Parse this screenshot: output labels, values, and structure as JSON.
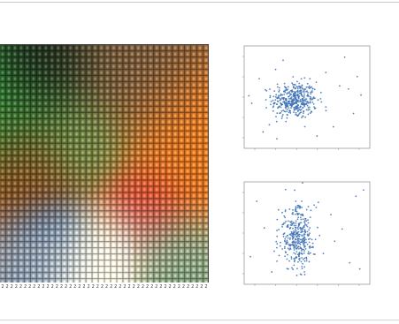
{
  "chart_data": [
    {
      "type": "heatmap",
      "title": "",
      "xlabel": "",
      "ylabel": "",
      "x_tick_labels": [
        "2",
        "2",
        "2",
        "2",
        "2",
        "2",
        "2",
        "2",
        "2",
        "2",
        "2",
        "2",
        "2",
        "2",
        "2",
        "2",
        "2",
        "2",
        "2",
        "2",
        "2",
        "2",
        "2",
        "2",
        "2",
        "2",
        "2",
        "2",
        "2",
        "2",
        "2",
        "2",
        "2",
        "2",
        "2",
        "2",
        "2",
        "2",
        "2",
        "2",
        "2",
        "2",
        "2",
        "2",
        "2",
        "2"
      ],
      "grid": false,
      "colors": [
        "#2e7d32",
        "#1a1a1a",
        "#8b4513",
        "#e67e22",
        "#f39c12",
        "#c0392b",
        "#2b7bb9",
        "#f2e6a0",
        "#ffffff",
        "#4caf50"
      ]
    },
    {
      "type": "scatter",
      "title": "",
      "xlabel": "",
      "ylabel": "",
      "color": "#3a6fb5",
      "xlim": [
        0,
        10
      ],
      "ylim": [
        0,
        10
      ],
      "x_tick_labels": [
        "",
        "",
        "",
        "",
        "",
        ""
      ],
      "y_tick_labels": [
        "",
        "",
        "",
        "",
        ""
      ],
      "grid": false,
      "cluster": {
        "center": [
          4.0,
          4.7
        ],
        "spread": [
          0.9,
          0.9
        ],
        "count": 420
      },
      "outliers": [
        [
          1.2,
          6.8
        ],
        [
          8.0,
          8.9
        ],
        [
          9.3,
          5.2
        ],
        [
          7.1,
          2.1
        ],
        [
          2.0,
          2.3
        ],
        [
          8.7,
          3.4
        ],
        [
          0.6,
          4.4
        ],
        [
          6.5,
          7.4
        ],
        [
          3.1,
          8.6
        ],
        [
          9.0,
          7.0
        ],
        [
          5.8,
          1.2
        ],
        [
          1.5,
          1.6
        ],
        [
          7.6,
          6.1
        ],
        [
          2.5,
          7.7
        ],
        [
          8.3,
          5.8
        ]
      ]
    },
    {
      "type": "scatter",
      "title": "",
      "xlabel": "",
      "ylabel": "",
      "color": "#3a6fb5",
      "xlim": [
        0,
        10
      ],
      "ylim": [
        0,
        10
      ],
      "x_tick_labels": [
        "",
        "",
        "",
        "",
        "",
        ""
      ],
      "y_tick_labels": [
        "",
        "",
        "",
        "",
        ""
      ],
      "grid": false,
      "cluster": {
        "center": [
          4.2,
          4.6
        ],
        "spread": [
          0.7,
          1.5
        ],
        "count": 380
      },
      "outliers": [
        [
          8.9,
          8.6
        ],
        [
          9.5,
          9.2
        ],
        [
          6.3,
          3.0
        ],
        [
          0.5,
          2.7
        ],
        [
          7.2,
          4.2
        ],
        [
          8.4,
          2.1
        ],
        [
          1.6,
          5.5
        ],
        [
          9.2,
          1.5
        ],
        [
          6.9,
          6.8
        ],
        [
          2.2,
          1.2
        ],
        [
          7.8,
          5.4
        ],
        [
          5.9,
          8.0
        ],
        [
          1.0,
          8.1
        ]
      ]
    }
  ]
}
